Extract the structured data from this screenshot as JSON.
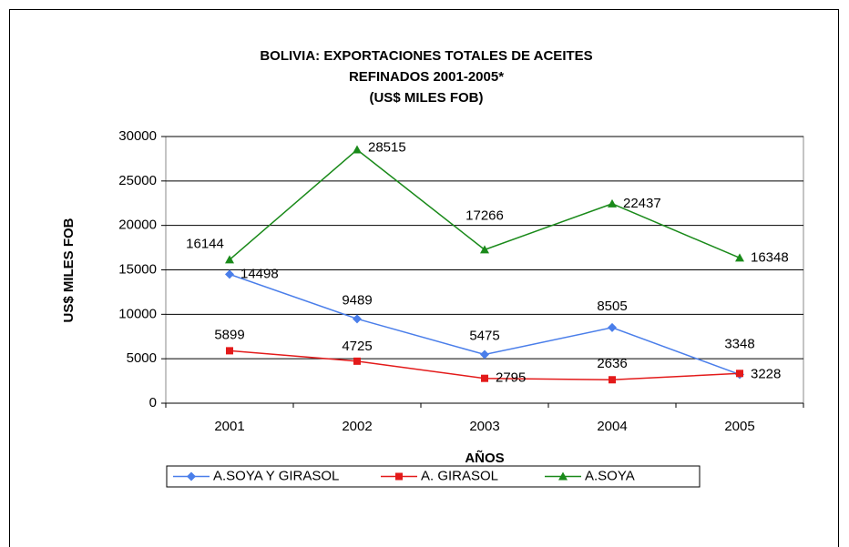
{
  "chart_data": {
    "type": "line",
    "title": [
      "BOLIVIA: EXPORTACIONES TOTALES DE ACEITES",
      "REFINADOS 2001-2005*",
      "(US$ MILES FOB)"
    ],
    "x_label": "AÑOS",
    "y_label": "US$ MILES FOB",
    "categories": [
      "2001",
      "2002",
      "2003",
      "2004",
      "2005"
    ],
    "series": [
      {
        "name": "A.SOYA Y GIRASOL",
        "color": "#4a7eea",
        "marker": "diamond",
        "values": [
          14498,
          9489,
          5475,
          8505,
          3228
        ]
      },
      {
        "name": "A. GIRASOL",
        "color": "#e31a1a",
        "marker": "square",
        "values": [
          5899,
          4725,
          2795,
          2636,
          3348
        ]
      },
      {
        "name": "A.SOYA",
        "color": "#1a8a1a",
        "marker": "triangle",
        "values": [
          16144,
          28515,
          17266,
          22437,
          16348
        ]
      }
    ],
    "ylim": [
      0,
      30000
    ],
    "yticks": [
      0,
      5000,
      10000,
      15000,
      20000,
      25000,
      30000
    ],
    "grid": true,
    "legend": "bottom"
  }
}
